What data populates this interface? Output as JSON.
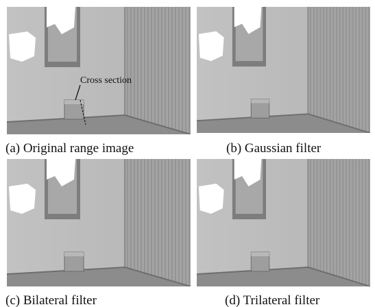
{
  "figure": {
    "panels": [
      {
        "caption": "(a) Original range image",
        "annotation": "Cross section"
      },
      {
        "caption": "(b) Gaussian filter"
      },
      {
        "caption": "(c) Bilateral filter"
      },
      {
        "caption": "(d) Trilateral filter"
      }
    ]
  }
}
